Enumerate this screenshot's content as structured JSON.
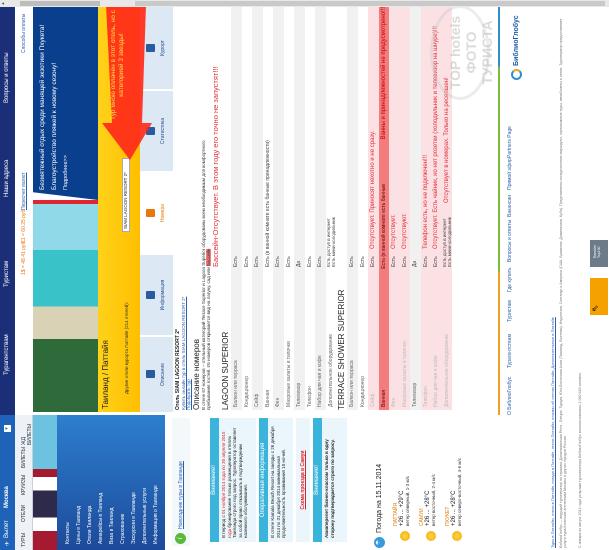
{
  "nav": {
    "departure_label": "Вылет",
    "city": "Москва",
    "items": [
      "Турагентствам",
      "Туристам",
      "Наши адреса",
      "Вопросы и ответы"
    ]
  },
  "product_tabs": [
    "ТУРЫ",
    "ОТЕЛИ",
    "КРУИЗЫ",
    "БИЛЕТЫ",
    "ЖД БИЛЕТЫ"
  ],
  "currency": {
    "usd": "1$ = 48.41 руб.",
    "eur": "€1 = 60.25 руб.",
    "convert_link": "Пересчет валют"
  },
  "payment_link": "Способы оплаты",
  "sidebar": {
    "menu": [
      "Контакты",
      "Цены в Таиланд",
      "Отели Таиланда",
      "Авиарейсы в Таиланд",
      "Виза в Таиланд",
      "Страхование",
      "Экскурсии в Таиланде",
      "Дополнительные услуги",
      "Информация о Таиланде"
    ],
    "new_year_link": "Новогодние туры в Таиланде",
    "notice1": {
      "title": "Внимание!",
      "pre": "В период с ",
      "dates": "01 ноября 2014 года по 30 апреля 2015 года",
      "post": " бронирование только размещения в отелях Таиланда строго под запрос. Туроператор оставляет за собой право отказывать в подтверждении наземного обслуживания."
    },
    "notice2": {
      "title": "Оперативная информация",
      "text": "В отеле Kamala Beach Resort на заезды с 26 декабря 2014 по 31 декабря 2014 минимальная продолжительность проживания 10 ночей."
    },
    "samui_link": "Схема проезда в Самуи",
    "notice3": {
      "title": "Внимание!",
      "text": "Авиаперелет бизнес-классом только в одну сторону подтверждается строго по запросу."
    },
    "weather": {
      "title": "Погода на 15.11.2014",
      "cities": [
        {
          "name": "ПАТТАЙЯ",
          "temp": "+26 ... +29°C",
          "wind": "ветер северный, 1-3 м/с"
        },
        {
          "name": "САМУИ",
          "temp": "+26 ... +28°C",
          "wind": "ветер восточный, 2-4 м/с"
        },
        {
          "name": "ПХУКЕТ",
          "temp": "+26 ... +28°C",
          "wind": "ветер северо-восточный, 4-6 м/с"
        }
      ]
    }
  },
  "banner": {
    "line1": "Безмятежный отдых среди манящей экзотики Пхукета!",
    "line2": "Благоустройство пляжей к новому сезону!",
    "more": "Подробнее>>"
  },
  "location": {
    "title": "Таиланд / Паттайя",
    "other_hotels_label": "Другие отели курорта Паттайя (214 отелей):",
    "selected_hotel": "SIAM LAGOON RESORT 2*"
  },
  "hotel_tabs": [
    {
      "label": "Описание"
    },
    {
      "label": "Информация"
    },
    {
      "label": "Номера",
      "active": true
    },
    {
      "label": "Статистика"
    },
    {
      "label": "Курорт"
    }
  ],
  "annotation_arrow": {
    "text": "Тур мною оплачен в этот отель, но с категорией 3 звезды!",
    "color": "#ff2a1a",
    "text_color": "#ffe14a"
  },
  "hotel": {
    "title": "Отель SIAM LAGOON RESORT 2*",
    "buy_link": "Купить онлайн тур в отель SIAM LAGOON RESORT 2*",
    "pick_link": "Подобрать тур",
    "rooms_heading": "Описание номеров",
    "rooms_text": "В отеле 67 номеров – отельный категорий Terrace Superior и Lagoon Superior оборудованы всем необходимым для комфортного пребывания гостей. Из номеров открывается вид на лагуну, сад или ",
    "rooms_text_highlight": "Бассейн",
    "rooms_annotation": "Бассейн-Отсутствует. В этом году его точно не запустят!!!",
    "room_types": [
      {
        "name": "LAGOON SUPERIOR",
        "rows": [
          {
            "label": "Балкон или терраса",
            "value": "Есть"
          },
          {
            "label": "Кондиционер",
            "value": "Есть"
          },
          {
            "label": "Сейф",
            "value": "Есть"
          },
          {
            "label": "Ванная",
            "value": "Есть (в ванной комнате есть банные принадлежности)"
          },
          {
            "label": "Фен",
            "value": "Есть"
          },
          {
            "label": "Махровые халаты и тапочки",
            "value": "Есть"
          },
          {
            "label": "Телевизор",
            "value": "Да"
          },
          {
            "label": "Телефон",
            "value": "Есть"
          },
          {
            "label": "Набор для чая и кофе",
            "value": "Есть"
          },
          {
            "label": "Дополнительное оборудование",
            "value": "Есть доступ в интернет",
            "value2": "Есть мини-холодильник"
          }
        ]
      },
      {
        "name": "TERRACE SHOWER SUPERIOR",
        "rows": [
          {
            "label": "Балкон или терраса",
            "value": "Есть"
          },
          {
            "label": "Кондиционер",
            "value": "Есть"
          },
          {
            "label": "Сейф",
            "value": "Есть",
            "note": "Отсутствует. Приносят нехотно и не сразу."
          },
          {
            "label": "Ванная",
            "value": "Есть (в ванной комнате есть банные принадлежности)",
            "note": "Ванны и принадлежностей не предусмотрено!!!",
            "strong": true
          },
          {
            "label": "Фен",
            "value": "Есть",
            "note": "Отсутствует."
          },
          {
            "label": "Махровые халаты и тапочки",
            "value": "Есть",
            "note": "Отсутствуют."
          },
          {
            "label": "Телевизор",
            "value": "Да"
          },
          {
            "label": "Телефон",
            "value": "Есть",
            "note": "Телефон есть, но не подключен!!!"
          },
          {
            "label": "Набор для чая и кофе",
            "value": "Есть",
            "note": "Отсутствует. Есть чайник, но нет розетки (холодильник и телевизор на шнуре)!!!"
          },
          {
            "label": "Дополнительное оборудование",
            "value": "Есть доступ в интернет",
            "value2": "Есть мини-холодильник",
            "note": "Отсутствует в номерах. Только на ресепшен!"
          }
        ]
      }
    ]
  },
  "footer": {
    "links": [
      "О БиблиоГлобус",
      "Турагентствам",
      "Туристам",
      "Где купить",
      "Вопросы и ответы",
      "Вакансии",
      "Прямой эфир",
      "Partners Page"
    ],
    "logo": "БиблиоГлобус",
    "watermark": "TOP hotels ФОТО ТУРИСТА",
    "seo_links": "Туры в Паттайю, отели в Паттайе, погода в Паттайе, отели Паттайи, отзывы об отелях Паттайи, Дополнительные в Паттайе",
    "about": "БиблиоГлобус — ведущий туроператор по странам: Доминиканская Респ., Греция, Турция, Юго-Восточная Азия (Таиланд, Вьетнам), Индонезия, Сингапур и Америка (США, Бразилия, Доминикана, Куба). Представлены экскурсионные маршруты, горнолыжные туры, авиабилеты и отели. Туроператор предоставляет услуги туристическим агентствам Москвы и других городов России.",
    "stats": "С января по август 2014 года услугами туроператора БиблиоГлобус воспользовались 1 060 618 человек.",
    "badge_rambler": "Rambler Top100"
  }
}
